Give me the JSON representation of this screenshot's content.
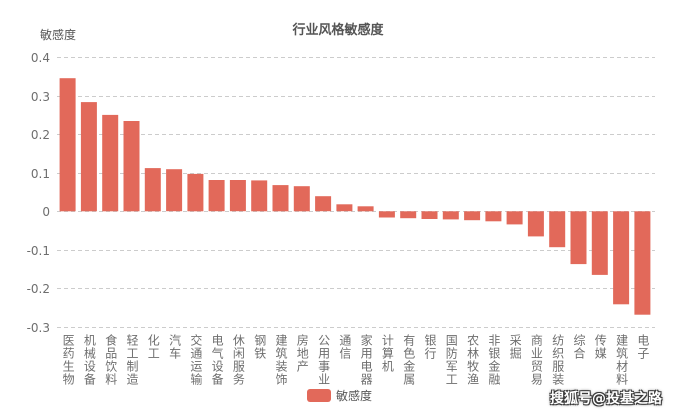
{
  "chart_data": {
    "type": "bar",
    "title": "行业风格敏感度",
    "ylabel": "敏感度",
    "xlabel": "",
    "ylim": [
      -0.3,
      0.4
    ],
    "yticks": [
      0.4,
      0.3,
      0.2,
      0.1,
      0,
      -0.1,
      -0.2,
      -0.3
    ],
    "grid": true,
    "legend": "bottom",
    "categories": [
      "医药生物",
      "机械设备",
      "食品饮料",
      "轻工制造",
      "化工",
      "汽车",
      "交通运输",
      "电气设备",
      "休闲服务",
      "钢铁",
      "建筑装饰",
      "房地产",
      "公用事业",
      "通信",
      "家用电器",
      "计算机",
      "有色金属",
      "银行",
      "国防军工",
      "农林牧渔",
      "非银金融",
      "采掘",
      "商业贸易",
      "纺织服装",
      "综合",
      "传媒",
      "建筑材料",
      "电子"
    ],
    "series": [
      {
        "name": "敏感度",
        "values": [
          0.345,
          0.283,
          0.25,
          0.234,
          0.112,
          0.109,
          0.097,
          0.081,
          0.081,
          0.08,
          0.068,
          0.065,
          0.039,
          0.018,
          0.013,
          -0.016,
          -0.018,
          -0.02,
          -0.021,
          -0.023,
          -0.026,
          -0.034,
          -0.065,
          -0.093,
          -0.137,
          -0.165,
          -0.241,
          -0.268
        ]
      }
    ],
    "colors": {
      "bar": "#E2695A",
      "grid": "#CCCCCC",
      "text": "#6E6E6E"
    }
  },
  "watermark": "搜狐号@投基之路"
}
